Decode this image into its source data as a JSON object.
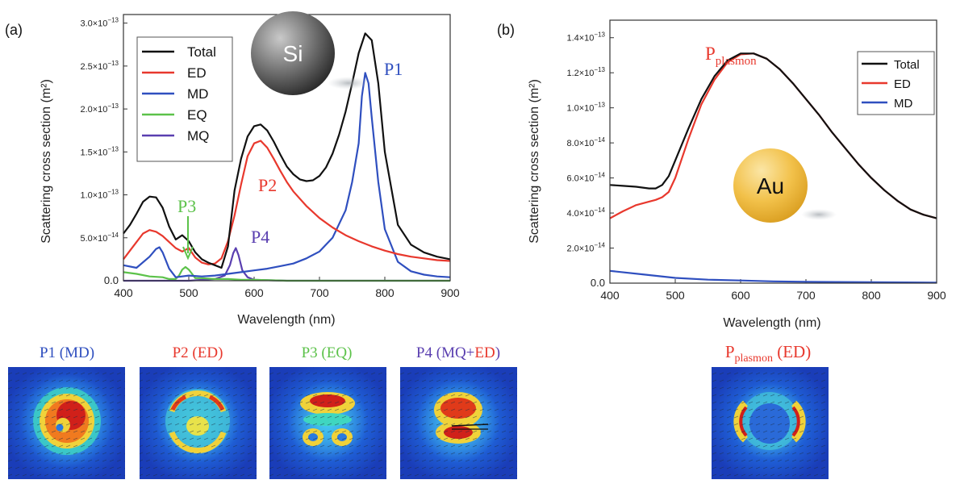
{
  "panel_a": {
    "label": "(a)",
    "sphere_label": "Si",
    "peak_labels": [
      "P1",
      "P2",
      "P3",
      "P4"
    ]
  },
  "panel_b": {
    "label": "(b)",
    "sphere_label": "Au",
    "peak_label_main": "P",
    "peak_label_sub": "plasmon"
  },
  "field_maps": [
    {
      "parts": [
        {
          "text": "P1 (MD)",
          "color": "#2f4fbf"
        }
      ]
    },
    {
      "parts": [
        {
          "text": "P2 (ED)",
          "color": "#e8382d"
        }
      ]
    },
    {
      "parts": [
        {
          "text": "P3 (EQ)",
          "color": "#5cc24a"
        }
      ]
    },
    {
      "parts": [
        {
          "text": "P4 (MQ+",
          "color": "#5a3fb0"
        },
        {
          "text": "ED",
          "color": "#e8382d"
        },
        {
          "text": ")",
          "color": "#5a3fb0"
        }
      ]
    },
    {
      "parts": [
        {
          "text": "P",
          "color": "#e8382d"
        },
        {
          "text": "plasmon",
          "color": "#e8382d",
          "sub": true
        },
        {
          "text": " (ED)",
          "color": "#e8382d"
        }
      ]
    }
  ],
  "chart_data": [
    {
      "type": "line",
      "xlabel": "Wavelength (nm)",
      "ylabel": "Scattering cross section (m²)",
      "xlim": [
        400,
        900
      ],
      "ylim": [
        0,
        3.1e-13
      ],
      "xticks": [
        400,
        500,
        600,
        700,
        800,
        900
      ],
      "xticklabels": [
        "400",
        "500",
        "600",
        "700",
        "800",
        "900"
      ],
      "yticks": [
        0,
        5e-14,
        1e-13,
        1.5e-13,
        2e-13,
        2.5e-13,
        3e-13
      ],
      "yticklabels": [
        {
          "m": "0.0",
          "e": ""
        },
        {
          "m": "5.0×10",
          "e": "−14"
        },
        {
          "m": "1.0×10",
          "e": "−13"
        },
        {
          "m": "1.5×10",
          "e": "−13"
        },
        {
          "m": "2.0×10",
          "e": "−13"
        },
        {
          "m": "2.5×10",
          "e": "−13"
        },
        {
          "m": "3.0×10",
          "e": "−13"
        }
      ],
      "legend_position": "top-left",
      "series": [
        {
          "name": "Total",
          "color": "#111111",
          "x": [
            400,
            410,
            420,
            430,
            440,
            450,
            460,
            470,
            480,
            490,
            500,
            510,
            520,
            530,
            540,
            550,
            560,
            570,
            580,
            590,
            600,
            610,
            620,
            630,
            640,
            650,
            660,
            670,
            680,
            690,
            700,
            710,
            720,
            730,
            740,
            750,
            760,
            770,
            780,
            790,
            800,
            820,
            840,
            860,
            880,
            900
          ],
          "y": [
            5.5e-14,
            6.5e-14,
            7.8e-14,
            9.2e-14,
            9.8e-14,
            9.7e-14,
            8.5e-14,
            6.3e-14,
            4.8e-14,
            5.3e-14,
            4.6e-14,
            3.3e-14,
            2.5e-14,
            2.1e-14,
            1.8e-14,
            1.5e-14,
            4e-14,
            1.05e-13,
            1.42e-13,
            1.68e-13,
            1.8e-13,
            1.82e-13,
            1.75e-13,
            1.62e-13,
            1.47e-13,
            1.33e-13,
            1.24e-13,
            1.18e-13,
            1.16e-13,
            1.17e-13,
            1.22e-13,
            1.32e-13,
            1.48e-13,
            1.7e-13,
            1.97e-13,
            2.3e-13,
            2.65e-13,
            2.88e-13,
            2.8e-13,
            2.3e-13,
            1.5e-13,
            6.5e-14,
            4.2e-14,
            3.3e-14,
            2.8e-14,
            2.5e-14
          ]
        },
        {
          "name": "ED",
          "color": "#e8382d",
          "x": [
            400,
            410,
            420,
            430,
            440,
            450,
            460,
            470,
            480,
            490,
            500,
            510,
            520,
            530,
            540,
            550,
            560,
            570,
            580,
            590,
            600,
            610,
            620,
            630,
            640,
            650,
            660,
            680,
            700,
            720,
            740,
            760,
            780,
            800,
            820,
            840,
            860,
            880,
            900
          ],
          "y": [
            2.5e-14,
            3.5e-14,
            4.5e-14,
            5.5e-14,
            5.9e-14,
            5.7e-14,
            5.2e-14,
            4.5e-14,
            3.8e-14,
            3.4e-14,
            3.8e-14,
            2.7e-14,
            2.1e-14,
            1.9e-14,
            2e-14,
            2.6e-14,
            4.6e-14,
            7.6e-14,
            1.12e-13,
            1.45e-13,
            1.6e-13,
            1.63e-13,
            1.55e-13,
            1.42e-13,
            1.28e-13,
            1.15e-13,
            1.04e-13,
            8.7e-14,
            7.3e-14,
            6.2e-14,
            5.3e-14,
            4.6e-14,
            4e-14,
            3.5e-14,
            3.1e-14,
            2.8e-14,
            2.6e-14,
            2.4e-14,
            2.3e-14
          ]
        },
        {
          "name": "MD",
          "color": "#2f4fbf",
          "x": [
            400,
            420,
            440,
            450,
            455,
            460,
            470,
            480,
            500,
            520,
            540,
            560,
            580,
            600,
            620,
            640,
            660,
            680,
            700,
            720,
            740,
            750,
            760,
            765,
            770,
            775,
            780,
            790,
            800,
            820,
            840,
            860,
            880,
            900
          ],
          "y": [
            1.8e-14,
            1.5e-14,
            2.8e-14,
            3.7e-14,
            3.9e-14,
            3.3e-14,
            1.4e-14,
            4e-15,
            6e-15,
            5e-15,
            6e-15,
            8e-15,
            1e-14,
            1.2e-14,
            1.4e-14,
            1.7e-14,
            2e-14,
            2.6e-14,
            3.4e-14,
            5e-14,
            8.2e-14,
            1.15e-13,
            1.6e-13,
            2.15e-13,
            2.42e-13,
            2.3e-13,
            1.9e-13,
            1.15e-13,
            6e-14,
            2.2e-14,
            1.1e-14,
            7e-15,
            5e-15,
            4e-15
          ]
        },
        {
          "name": "EQ",
          "color": "#5cc24a",
          "x": [
            400,
            420,
            440,
            460,
            470,
            480,
            485,
            490,
            495,
            500,
            505,
            510,
            520,
            540,
            560,
            580,
            600,
            650,
            700,
            800,
            900
          ],
          "y": [
            1e-14,
            8e-15,
            5e-15,
            4e-15,
            2e-15,
            2e-15,
            6e-15,
            1.3e-14,
            1.6e-14,
            1.3e-14,
            8e-15,
            3e-15,
            3e-15,
            2e-15,
            2e-15,
            1e-15,
            1e-15,
            0,
            0,
            0,
            0
          ]
        },
        {
          "name": "MQ",
          "color": "#5a3fb0",
          "x": [
            400,
            500,
            540,
            555,
            563,
            568,
            572,
            576,
            582,
            590,
            600,
            650,
            700,
            800,
            900
          ],
          "y": [
            0,
            0,
            2e-15,
            6e-15,
            1.8e-14,
            3.2e-14,
            3.8e-14,
            3e-14,
            1.2e-14,
            4e-15,
            1e-15,
            0,
            0,
            0,
            0
          ]
        }
      ]
    },
    {
      "type": "line",
      "xlabel": "Wavelength (nm)",
      "ylabel": "Scattering cross section (m²)",
      "xlim": [
        400,
        900
      ],
      "ylim": [
        0,
        1.5e-13
      ],
      "xticks": [
        400,
        500,
        600,
        700,
        800,
        900
      ],
      "xticklabels": [
        "400",
        "500",
        "600",
        "700",
        "800",
        "900"
      ],
      "yticks": [
        0,
        2e-14,
        4e-14,
        6e-14,
        8e-14,
        1e-13,
        1.2e-13,
        1.4e-13
      ],
      "yticklabels": [
        {
          "m": "0.0",
          "e": ""
        },
        {
          "m": "2.0×10",
          "e": "−14"
        },
        {
          "m": "4.0×10",
          "e": "−14"
        },
        {
          "m": "6.0×10",
          "e": "−14"
        },
        {
          "m": "8.0×10",
          "e": "−14"
        },
        {
          "m": "1.0×10",
          "e": "−13"
        },
        {
          "m": "1.2×10",
          "e": "−13"
        },
        {
          "m": "1.4×10",
          "e": "−13"
        }
      ],
      "legend_position": "top-right",
      "series": [
        {
          "name": "Total",
          "color": "#111111",
          "x": [
            400,
            420,
            440,
            460,
            470,
            480,
            490,
            500,
            520,
            540,
            560,
            580,
            600,
            620,
            640,
            660,
            680,
            700,
            720,
            740,
            760,
            780,
            800,
            820,
            840,
            860,
            880,
            900
          ],
          "y": [
            5.6e-14,
            5.55e-14,
            5.5e-14,
            5.4e-14,
            5.4e-14,
            5.6e-14,
            6.1e-14,
            7e-14,
            8.8e-14,
            1.05e-13,
            1.18e-13,
            1.27e-13,
            1.31e-13,
            1.31e-13,
            1.28e-13,
            1.22e-13,
            1.14e-13,
            1.05e-13,
            9.6e-14,
            8.6e-14,
            7.7e-14,
            6.8e-14,
            6e-14,
            5.3e-14,
            4.7e-14,
            4.2e-14,
            3.9e-14,
            3.7e-14
          ]
        },
        {
          "name": "ED",
          "color": "#e8382d",
          "x": [
            400,
            420,
            440,
            460,
            470,
            480,
            490,
            500,
            520,
            540,
            560,
            580,
            600,
            620,
            640,
            660,
            680,
            700,
            720,
            740,
            760,
            780,
            800,
            820,
            840,
            860,
            880,
            900
          ],
          "y": [
            3.7e-14,
            4.1e-14,
            4.45e-14,
            4.65e-14,
            4.75e-14,
            4.9e-14,
            5.2e-14,
            6e-14,
            8.2e-14,
            1.02e-13,
            1.16e-13,
            1.26e-13,
            1.305e-13,
            1.31e-13,
            1.28e-13,
            1.22e-13,
            1.14e-13,
            1.05e-13,
            9.6e-14,
            8.6e-14,
            7.7e-14,
            6.8e-14,
            6e-14,
            5.3e-14,
            4.7e-14,
            4.2e-14,
            3.9e-14,
            3.7e-14
          ]
        },
        {
          "name": "MD",
          "color": "#2f4fbf",
          "x": [
            400,
            450,
            500,
            550,
            600,
            650,
            700,
            800,
            900
          ],
          "y": [
            7e-15,
            5e-15,
            3e-15,
            2e-15,
            1.5e-15,
            1e-15,
            8e-16,
            5e-16,
            3e-16
          ]
        }
      ]
    }
  ]
}
